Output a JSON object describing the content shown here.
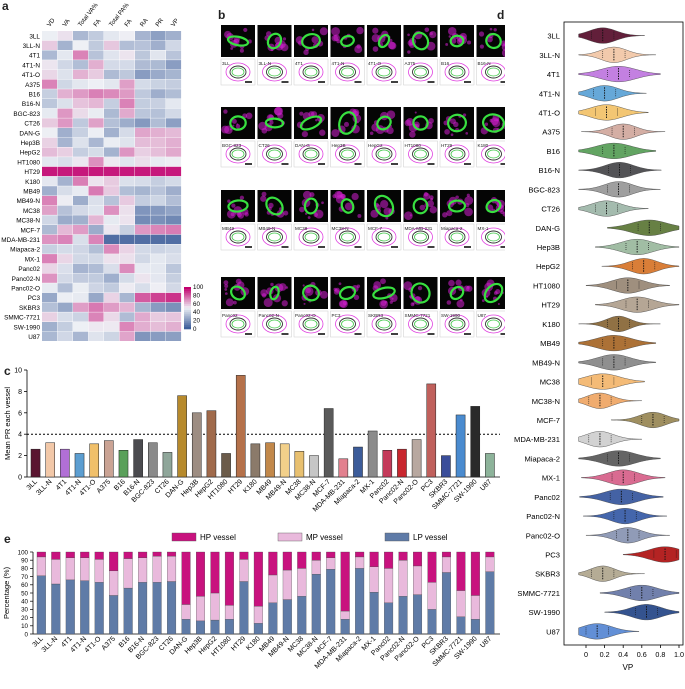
{
  "panels": {
    "a": {
      "letter": "a",
      "columns": [
        "VD",
        "VA",
        "Total VA%",
        "FA",
        "Total PA%",
        "FA",
        "RA",
        "PR",
        "VP"
      ],
      "rows": [
        "3LL",
        "3LL-N",
        "4T1",
        "4T1-N",
        "4T1-O",
        "A375",
        "B16",
        "B16-N",
        "BGC-823",
        "CT26",
        "DAN-G",
        "Hep3B",
        "HepG2",
        "HT1080",
        "HT29",
        "K180",
        "MB49",
        "MB49-N",
        "MC38",
        "MC38-N",
        "MCF-7",
        "MDA-MB-231",
        "Miapaca-2",
        "MX-1",
        "Panc02",
        "Panc02-N",
        "Panc02-O",
        "PC3",
        "SKBR3",
        "SMMC-7721",
        "SW-1990",
        "U87"
      ],
      "colorbar_ticks": [
        "100",
        "80",
        "60",
        "40",
        "20",
        "0"
      ],
      "colors": {
        "high": "#c2006e",
        "mid": "#eef0f5",
        "low": "#3f5f9b"
      }
    },
    "b": {
      "letter": "b",
      "tiles": [
        "3LL",
        "3LL-N",
        "4T1",
        "4T1-N",
        "4T1-O",
        "A375",
        "B16",
        "B16-N",
        "BGC-823",
        "CT26",
        "DAN-G",
        "Hep3B",
        "HepG2",
        "HT1080",
        "HT29",
        "K180",
        "MB49",
        "MB49-N",
        "MC38",
        "MC38-N",
        "MCF-7",
        "MDA-MB-231",
        "Miapaca-2",
        "MX-1",
        "Panc02",
        "Panc02-N",
        "Panc02-O",
        "PC3",
        "SKBR3",
        "SMMC-7721",
        "SW-1990",
        "U87"
      ],
      "colors": {
        "magenta": "#d21fd0",
        "green": "#38e040",
        "outline": "#e040e0"
      }
    },
    "c": {
      "letter": "c",
      "ylabel": "Mean PR each vessel",
      "yticks": [
        "0",
        "2",
        "4",
        "6",
        "8",
        "10"
      ]
    },
    "d": {
      "letter": "d",
      "xlabel": "VP",
      "xticks": [
        "0",
        "0.2",
        "0.4",
        "0.6",
        "0.8",
        "1.0"
      ]
    },
    "e": {
      "letter": "e",
      "ylabel": "Percentage (%)",
      "yticks": [
        "0",
        "10",
        "20",
        "30",
        "40",
        "50",
        "60",
        "70",
        "80",
        "90",
        "100"
      ],
      "legend": [
        "HP vessel",
        "MP vessel",
        "LP vessel"
      ],
      "colors": {
        "HP": "#c8127e",
        "MP": "#e9b9dc",
        "LP": "#5f7ba7"
      }
    }
  },
  "chart_data": [
    {
      "type": "bar",
      "title": "Mean PR each vessel",
      "categories": [
        "3LL",
        "3LL-N",
        "4T1",
        "4T1-N",
        "4T1-O",
        "A375",
        "B16",
        "B16-N",
        "BGC-823",
        "CT26",
        "DAN-G",
        "Hep3B",
        "HepG2",
        "HT1080",
        "HT29",
        "K180",
        "MB49",
        "MB49-N",
        "MC38",
        "MC38-N",
        "MCF-7",
        "MDA-MB-231",
        "Miapaca-2",
        "MX-1",
        "Panc02",
        "Panc02-N",
        "Panc02-O",
        "PC3",
        "SKBR3",
        "SMMC-7721",
        "SW-1990",
        "U87"
      ],
      "values": [
        2.6,
        3.2,
        2.6,
        2.2,
        3.1,
        3.4,
        2.5,
        3.5,
        3.2,
        2.3,
        7.6,
        6.0,
        6.2,
        2.2,
        9.5,
        3.1,
        3.2,
        3.1,
        2.4,
        2.0,
        6.4,
        1.7,
        2.8,
        4.3,
        2.5,
        2.6,
        3.5,
        8.7,
        2.0,
        5.8,
        6.6,
        2.2
      ],
      "colors": [
        "#5a1430",
        "#f2c8a8",
        "#b16fd6",
        "#5c9ed1",
        "#f1c06a",
        "#caa394",
        "#5aa05a",
        "#4b4b4f",
        "#8a8a8a",
        "#8fa69a",
        "#b78a2c",
        "#9d8d82",
        "#a06a4b",
        "#6b5b4a",
        "#b5714a",
        "#8b7a6a",
        "#c2884a",
        "#f2d08a",
        "#e8c070",
        "#c6c6c6",
        "#5a5a5a",
        "#e2808e",
        "#3c5c9a",
        "#8b8b8b",
        "#c43a5a",
        "#c8262e",
        "#b8a8a0",
        "#c0605c",
        "#3a4d9a",
        "#4a8bcf",
        "#2a2a2a",
        "#8db39a"
      ],
      "ylim": [
        0,
        10
      ],
      "reference_line": 4.0,
      "ylabel": "Mean PR each vessel"
    },
    {
      "type": "bar",
      "stacked": true,
      "categories": [
        "3LL",
        "3LL-N",
        "4T1",
        "4T1-N",
        "4T1-O",
        "A375",
        "B16",
        "B16-N",
        "BGC-823",
        "CT26",
        "DAN-G",
        "Hep3B",
        "HepG2",
        "HT1080",
        "HT29",
        "K180",
        "MB49",
        "MB49-N",
        "MC38",
        "MC38-N",
        "MCF-7",
        "MDA-MB-231",
        "Miapaca-2",
        "MX-1",
        "Panc02",
        "Panc02-N",
        "Panc02-O",
        "PC3",
        "SKBR3",
        "SMMC-7721",
        "SW-1990",
        "U87"
      ],
      "series": [
        {
          "name": "LP vessel",
          "values": [
            71,
            61,
            66,
            65,
            63,
            47,
            56,
            63,
            63,
            64,
            18,
            16,
            17,
            18,
            64,
            13,
            38,
            42,
            46,
            73,
            79,
            18,
            80,
            51,
            38,
            46,
            48,
            30,
            75,
            21,
            18,
            76
          ]
        },
        {
          "name": "MP vessel",
          "values": [
            23,
            30,
            27,
            28,
            28,
            30,
            36,
            30,
            32,
            31,
            18,
            30,
            33,
            17,
            27,
            21,
            34,
            36,
            34,
            17,
            14,
            10,
            14,
            31,
            42,
            44,
            35,
            33,
            19,
            32,
            29,
            18
          ]
        },
        {
          "name": "HP vessel",
          "values": [
            6,
            9,
            7,
            7,
            9,
            23,
            8,
            7,
            5,
            5,
            64,
            54,
            50,
            65,
            9,
            66,
            28,
            22,
            20,
            10,
            7,
            72,
            6,
            18,
            20,
            10,
            17,
            37,
            6,
            47,
            53,
            6
          ]
        }
      ],
      "ylim": [
        0,
        100
      ],
      "ylabel": "Percentage (%)"
    },
    {
      "type": "violin",
      "categories": [
        "3LL",
        "3LL-N",
        "4T1",
        "4T1-N",
        "4T1-O",
        "A375",
        "B16",
        "B16-N",
        "BGC-823",
        "CT26",
        "DAN-G",
        "Hep3B",
        "HepG2",
        "HT1080",
        "HT29",
        "K180",
        "MB49",
        "MB49-N",
        "MC38",
        "MC38-N",
        "MCF-7",
        "MDA-MB-231",
        "Miapaca-2",
        "MX-1",
        "Panc02",
        "Panc02-N",
        "Panc02-O",
        "PC3",
        "SKBR3",
        "SMMC-7721",
        "SW-1990",
        "U87"
      ],
      "medians": [
        0.18,
        0.3,
        0.35,
        0.2,
        0.22,
        0.4,
        0.3,
        0.36,
        0.35,
        0.22,
        0.68,
        0.55,
        0.62,
        0.45,
        0.55,
        0.35,
        0.3,
        0.3,
        0.18,
        0.15,
        0.72,
        0.15,
        0.35,
        0.4,
        0.38,
        0.42,
        0.45,
        0.85,
        0.18,
        0.6,
        0.65,
        0.12
      ],
      "colors": [
        "#5a1430",
        "#f2c8a8",
        "#c07ae0",
        "#5ea4d6",
        "#f3c46c",
        "#d2aaa0",
        "#5aa05a",
        "#4a4a4e",
        "#9a9a9a",
        "#a0b8aa",
        "#5f7a3a",
        "#9cbaa0",
        "#d8782e",
        "#9a8a78",
        "#b2a290",
        "#8b6a3a",
        "#a86a2c",
        "#8a8a8a",
        "#f4b870",
        "#f0a868",
        "#9a8a58",
        "#d0d0d0",
        "#5c5c5c",
        "#d8648c",
        "#3a5aa0",
        "#3b5ea8",
        "#8b96b4",
        "#b01818",
        "#b2a890",
        "#6a7aa8",
        "#2a4a8a",
        "#5a8ad4"
      ],
      "xlim": [
        0,
        1.0
      ],
      "xlabel": "VP"
    }
  ]
}
